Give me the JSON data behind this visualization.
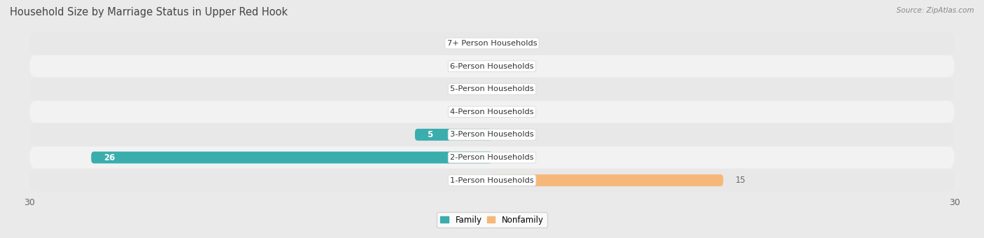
{
  "title": "Household Size by Marriage Status in Upper Red Hook",
  "source": "Source: ZipAtlas.com",
  "categories": [
    "7+ Person Households",
    "6-Person Households",
    "5-Person Households",
    "4-Person Households",
    "3-Person Households",
    "2-Person Households",
    "1-Person Households"
  ],
  "family_values": [
    0,
    0,
    0,
    0,
    5,
    26,
    0
  ],
  "nonfamily_values": [
    0,
    0,
    0,
    0,
    0,
    0,
    15
  ],
  "family_color": "#3AADAD",
  "nonfamily_color": "#F5B87A",
  "xlim": 30,
  "bar_height": 0.52,
  "bg_color": "#eaeaea",
  "row_colors": [
    "#e8e8e8",
    "#f2f2f2"
  ],
  "title_fontsize": 10.5,
  "label_fontsize": 8.5,
  "value_fontsize": 8.5,
  "axis_fontsize": 9
}
